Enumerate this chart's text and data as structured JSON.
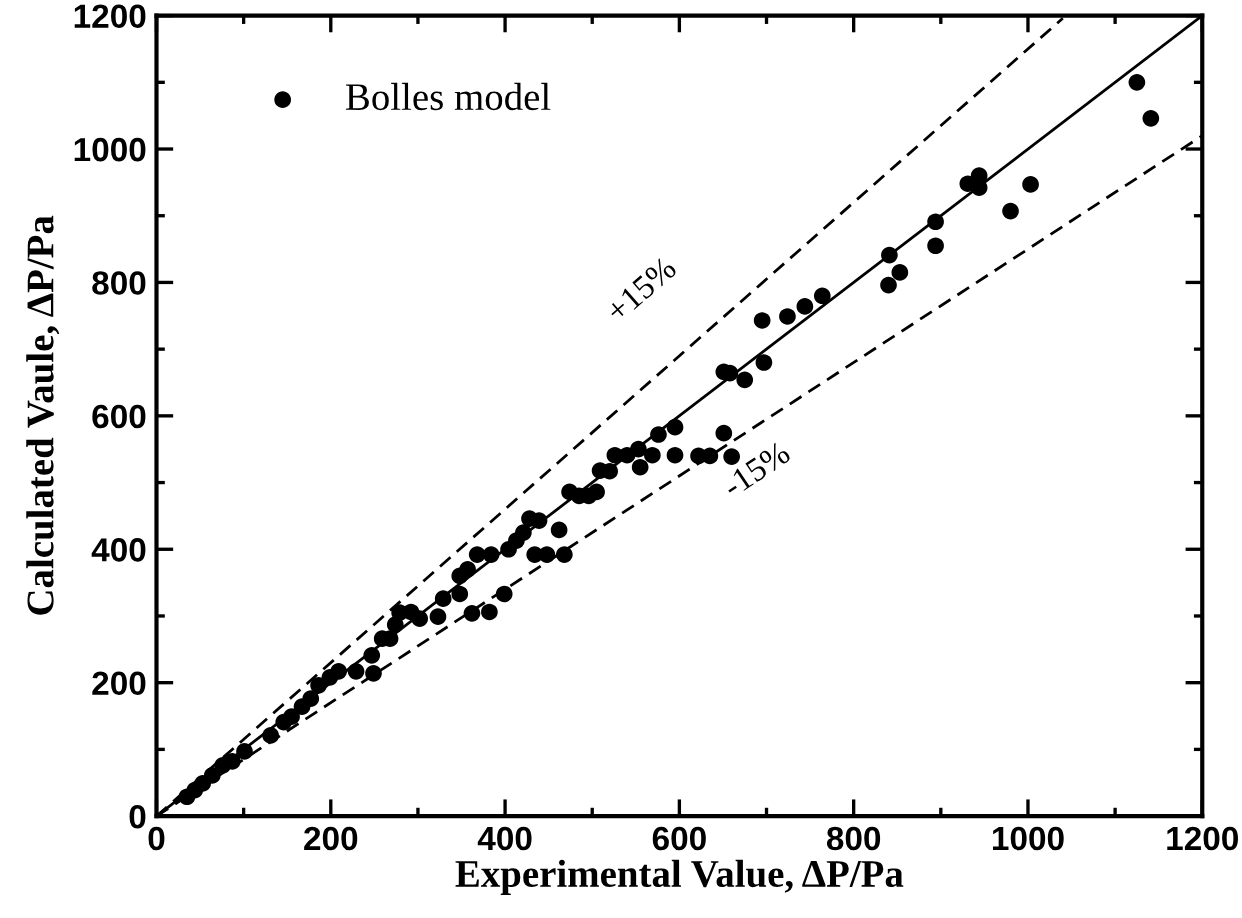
{
  "chart_data": {
    "type": "scatter",
    "xlabel": "Experimental Value, ΔP/Pa",
    "ylabel": "Calculated Vaule, ΔP/Pa",
    "xlim": [
      0,
      1200
    ],
    "ylim": [
      0,
      1200
    ],
    "xticks": [
      0,
      200,
      400,
      600,
      800,
      1000,
      1200
    ],
    "yticks": [
      0,
      200,
      400,
      600,
      800,
      1000,
      1200
    ],
    "grid": false,
    "legend": "top left",
    "annotations": [
      "+15%",
      "-15%"
    ],
    "series": [
      {
        "name": "Bolles model",
        "marker": "circle",
        "color": "#000000",
        "x": [
          1125,
          1141,
          1003,
          980,
          931,
          944,
          944,
          894,
          894,
          841,
          840,
          853,
          764,
          744,
          724,
          695,
          697,
          675,
          651,
          658,
          651,
          660,
          635,
          622,
          595,
          595,
          576,
          569,
          555,
          553,
          540,
          526,
          520,
          509,
          505,
          496,
          485,
          474,
          462,
          468,
          448,
          434,
          439,
          428,
          421,
          413,
          404,
          399,
          382,
          362,
          384,
          368,
          357,
          348,
          348,
          329,
          323,
          302,
          292,
          279,
          274,
          268,
          259,
          249,
          247,
          229,
          209,
          199,
          186,
          177,
          167,
          155,
          146,
          131,
          101,
          87,
          76,
          64,
          53,
          44,
          35
        ],
        "values": [
          1100,
          1046,
          947,
          907,
          948,
          960,
          942,
          891,
          855,
          841,
          796,
          815,
          780,
          764,
          749,
          743,
          680,
          654,
          666,
          664,
          574,
          539,
          540,
          540,
          583,
          541,
          572,
          541,
          523,
          550,
          541,
          541,
          517,
          518,
          486,
          480,
          480,
          486,
          429,
          392,
          392,
          392,
          443,
          446,
          425,
          413,
          400,
          333,
          306,
          304,
          392,
          392,
          370,
          360,
          333,
          326,
          299,
          296,
          306,
          305,
          287,
          266,
          266,
          214,
          241,
          217,
          217,
          208,
          196,
          176,
          164,
          149,
          141,
          121,
          97,
          82,
          76,
          61,
          49,
          39,
          29
        ]
      },
      {
        "type": "line",
        "marker": "none",
        "line_style": "solid",
        "color": "#000000",
        "x": [
          0,
          1200
        ],
        "values": [
          0,
          1200
        ]
      },
      {
        "type": "line",
        "marker": "none",
        "line_style": "dashed",
        "color": "#000000",
        "x": [
          0,
          1040
        ],
        "values": [
          0,
          1196
        ]
      },
      {
        "type": "line",
        "marker": "none",
        "line_style": "dashed",
        "color": "#000000",
        "x": [
          0,
          1200
        ],
        "values": [
          0,
          1020
        ]
      }
    ]
  }
}
